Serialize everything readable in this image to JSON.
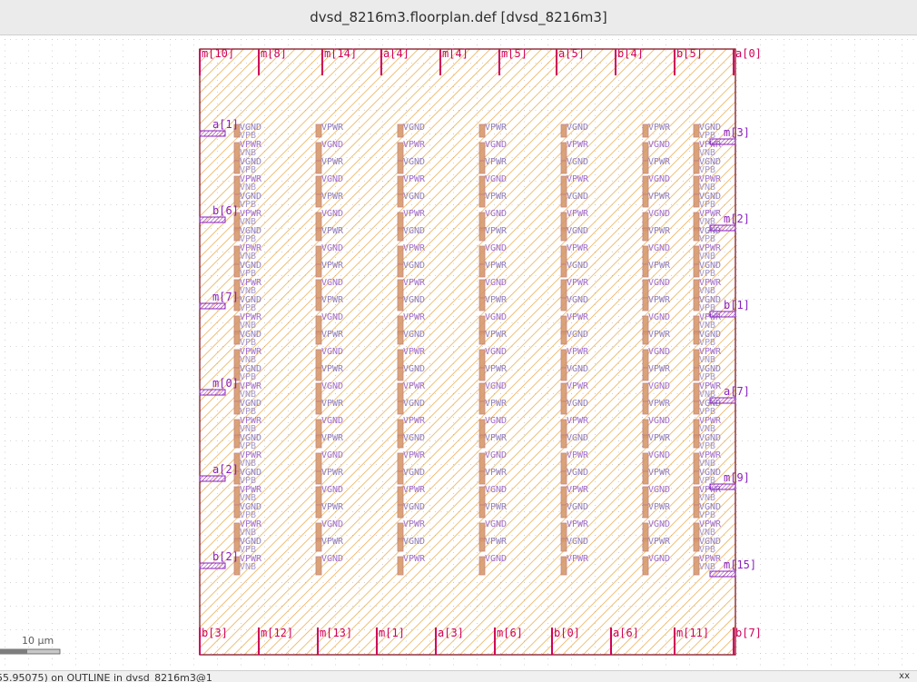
{
  "window": {
    "title": "dvsd_8216m3.floorplan.def [dvsd_8216m3]"
  },
  "colors": {
    "grid": "#9a9a9a",
    "outline": "#7a0010",
    "hatch": "#e8a23a",
    "pin_red": "#d0005a",
    "pin_purple": "#8a20c0",
    "cell": "#c07a7a",
    "label_vpwr": "#a070d0",
    "label_vgnd": "#9080c0"
  },
  "top_pins": [
    "m[10]",
    "m[8]",
    "m[14]",
    "a[4]",
    "m[4]",
    "m[5]",
    "a[5]",
    "b[4]",
    "b[5]",
    "a[0]"
  ],
  "bottom_pins": [
    "b[3]",
    "m[12]",
    "m[13]",
    "m[1]",
    "a[3]",
    "m[6]",
    "b[0]",
    "a[6]",
    "m[11]",
    "b[7]"
  ],
  "left_pins": [
    "a[1]",
    "b[6]",
    "m[7]",
    "m[0]",
    "a[2]",
    "b[2]"
  ],
  "right_pins": [
    "m[3]",
    "m[2]",
    "b[1]",
    "a[7]",
    "m[9]",
    "m[15]"
  ],
  "rail_labels": [
    "VGND",
    "VPWR",
    "VPB",
    "VNB"
  ],
  "scale": {
    "label": "10 µm"
  },
  "status": {
    "text": "55.95075) on OUTLINE in dvsd_8216m3@1",
    "right_mark": "xx"
  }
}
